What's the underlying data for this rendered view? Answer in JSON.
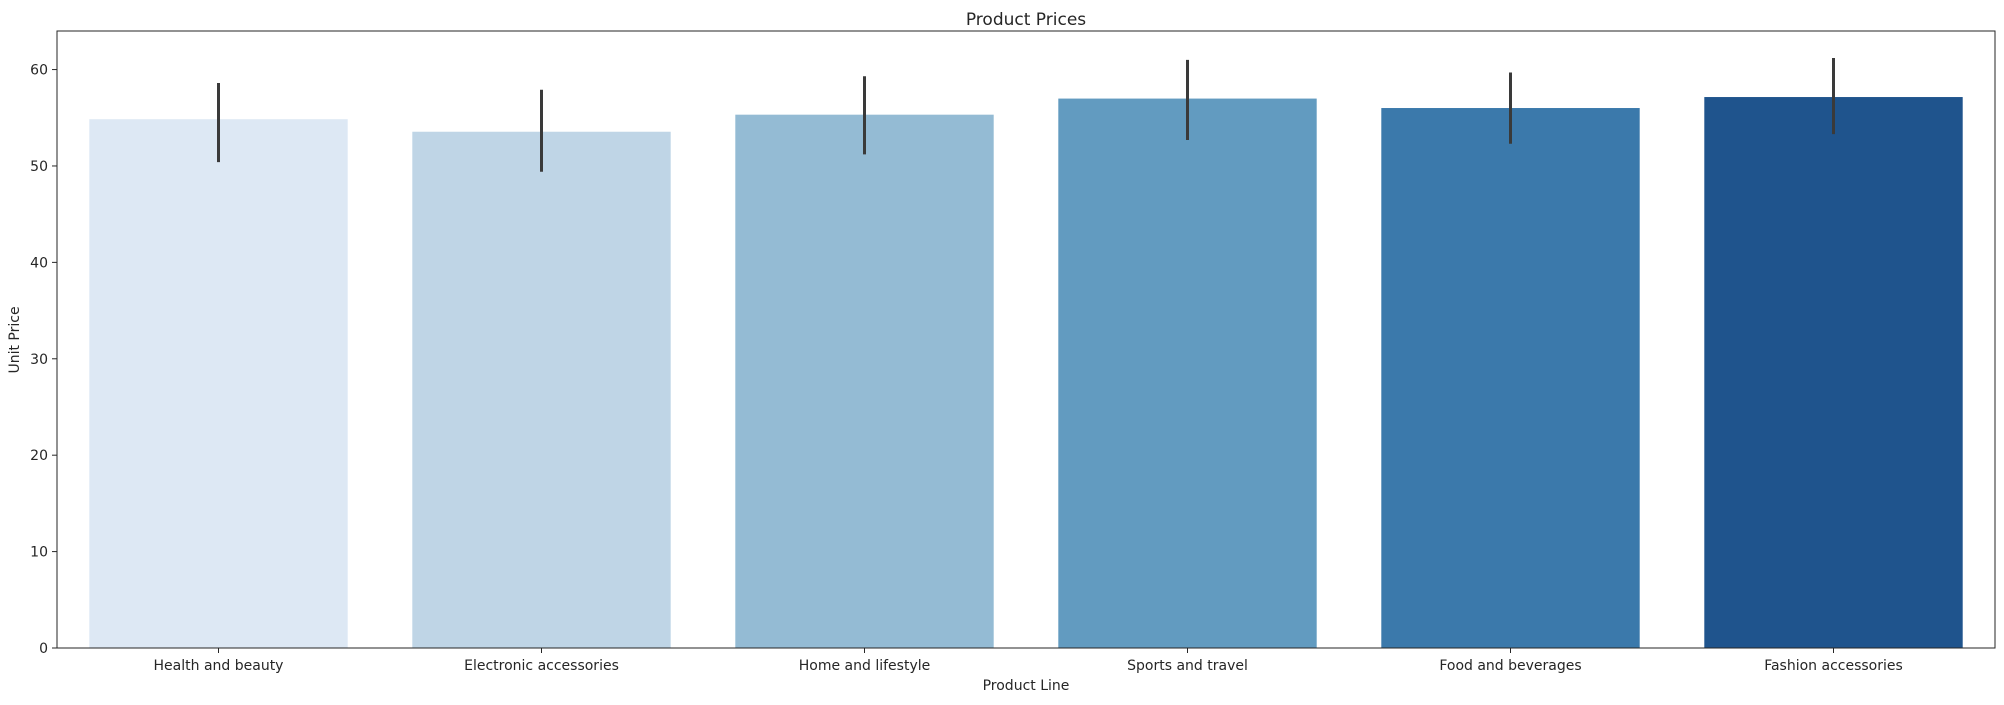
{
  "chart_data": {
    "type": "bar",
    "title": "Product Prices",
    "xlabel": "Product Line",
    "ylabel": "Unit Price",
    "categories": [
      "Health and beauty",
      "Electronic accessories",
      "Home and lifestyle",
      "Sports and travel",
      "Food and beverages",
      "Fashion accessories"
    ],
    "values": [
      54.85,
      53.55,
      55.32,
      56.99,
      56.01,
      57.15
    ],
    "error_low": [
      50.4,
      49.4,
      51.2,
      52.7,
      52.3,
      53.3
    ],
    "error_high": [
      58.6,
      57.9,
      59.3,
      61.0,
      59.7,
      61.2
    ],
    "bar_colors": [
      "#dde8f4",
      "#bfd5e6",
      "#94bbd4",
      "#629bc0",
      "#3b79ab",
      "#1f548d"
    ],
    "error_color": "#3a3a3a",
    "ylim": [
      0,
      64
    ],
    "yticks": [
      0,
      10,
      20,
      30,
      40,
      50,
      60
    ],
    "grid": false,
    "legend": "none"
  }
}
